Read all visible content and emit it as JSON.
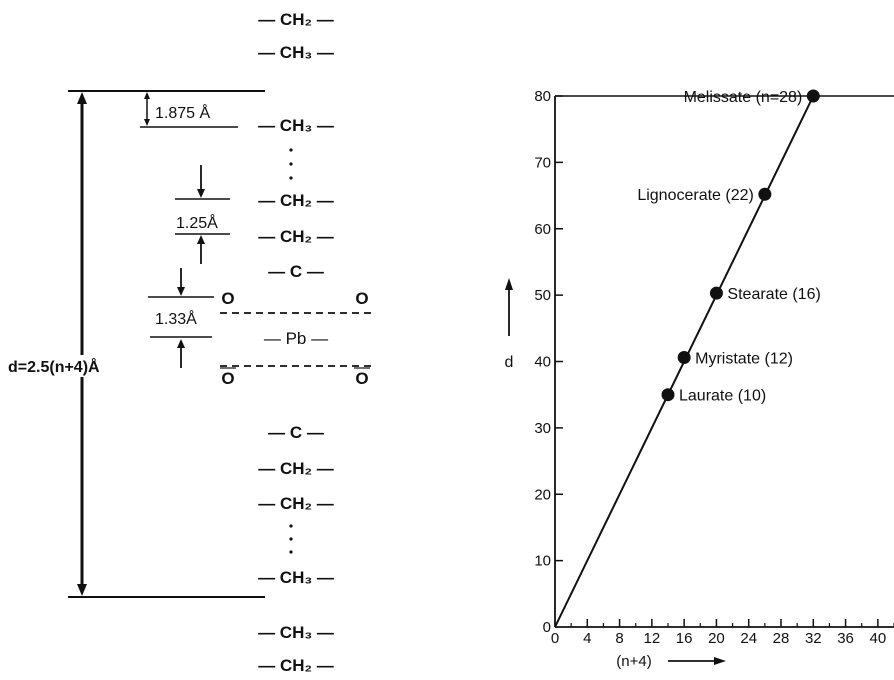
{
  "structure": {
    "top_chain": [
      "— CH₂ —",
      "— CH₃ —"
    ],
    "bottom_chain": [
      "— CH₃ —",
      "— CH₂ —"
    ],
    "layer_groups": [
      "— CH₃ —",
      "— CH₂ —",
      "— CH₂ —",
      "— C —",
      "— Pb —",
      "— C —",
      "— CH₂ —",
      "— CH₂ —",
      "— CH₃ —"
    ],
    "oxygen": "O",
    "dim_methyl": "1.875 Å",
    "dim_methylene": "1.25Å",
    "dim_oxygen": "1.33Å",
    "period_label": "d=2.5(n+4)Å"
  },
  "chart_data": {
    "type": "scatter",
    "xlabel": "(n+4)",
    "ylabel": "d",
    "xlim": [
      0,
      42
    ],
    "ylim": [
      0,
      80
    ],
    "x_ticks": [
      0,
      4,
      8,
      12,
      16,
      20,
      24,
      28,
      32,
      36,
      40
    ],
    "y_ticks": [
      0,
      10,
      20,
      30,
      40,
      50,
      60,
      70,
      80
    ],
    "x_tick_labels": [
      "0",
      "4",
      "8",
      "12",
      "16",
      "20",
      "24",
      "28",
      "32",
      "36",
      "40"
    ],
    "y_tick_labels": [
      "0",
      "10",
      "20",
      "30",
      "40",
      "50",
      "60",
      "70",
      "80"
    ],
    "line": {
      "x": [
        0,
        32
      ],
      "y": [
        0,
        80
      ]
    },
    "points": [
      {
        "label": "Laurate (10)",
        "x": 14,
        "y": 35,
        "label_side": "right"
      },
      {
        "label": "Myristate (12)",
        "x": 16,
        "y": 40.6,
        "label_side": "right"
      },
      {
        "label": "Stearate (16)",
        "x": 20,
        "y": 50.3,
        "label_side": "right"
      },
      {
        "label": "Lignocerate (22)",
        "x": 26,
        "y": 65.2,
        "label_side": "left"
      },
      {
        "label": "Melissate (n=28)",
        "x": 32,
        "y": 80,
        "label_side": "left"
      }
    ]
  }
}
